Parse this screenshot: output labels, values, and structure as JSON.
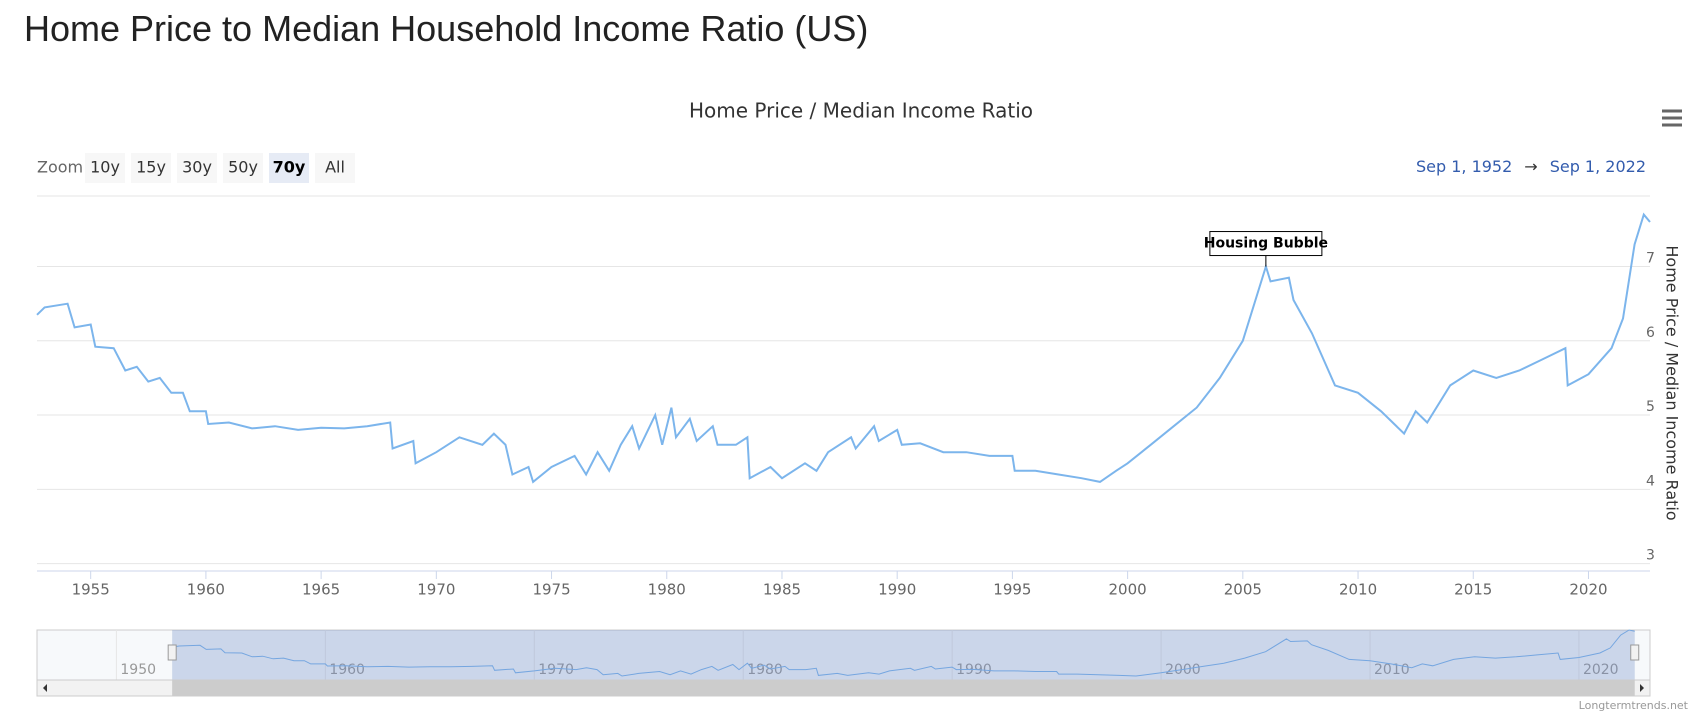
{
  "page_title": "Home Price to Median Household Income Ratio (US)",
  "chart_data": {
    "type": "line",
    "title": "Home Price / Median Income Ratio",
    "zoom_label": "Zoom",
    "zoom_buttons": [
      "10y",
      "15y",
      "30y",
      "50y",
      "70y",
      "All"
    ],
    "selected_zoom": 4,
    "range_from": "Sep 1, 1952",
    "range_separator": "→",
    "range_to": "Sep 1, 2022",
    "y_label": "Home Price / Median Income Ratio",
    "color": "#7cb5ec",
    "x": [
      1952.67,
      1953,
      1954,
      1954.3,
      1955,
      1955.2,
      1956,
      1956.5,
      1957,
      1957.5,
      1958,
      1958.5,
      1959,
      1959.3,
      1960,
      1960.1,
      1961,
      1962,
      1963,
      1964,
      1965,
      1966,
      1967,
      1968,
      1968.1,
      1969,
      1969.1,
      1970,
      1971,
      1972,
      1972.5,
      1973,
      1973.3,
      1974,
      1974.2,
      1975,
      1976,
      1976.5,
      1977,
      1977.5,
      1978,
      1978.5,
      1978.8,
      1979.5,
      1979.8,
      1980.2,
      1980.4,
      1981,
      1981.3,
      1982,
      1982.2,
      1983,
      1983.5,
      1983.6,
      1984.5,
      1985,
      1986,
      1986.5,
      1987,
      1988,
      1988.2,
      1989,
      1989.2,
      1990,
      1990.2,
      1991,
      1992,
      1993,
      1994,
      1995,
      1995.1,
      1996,
      1997,
      1998,
      1998.8,
      1999.5,
      2000,
      2001,
      2002,
      2003,
      2004,
      2005,
      2006,
      2006.2,
      2007,
      2007.2,
      2008,
      2009,
      2010,
      2011,
      2012,
      2012.5,
      2013,
      2014,
      2015,
      2016,
      2017,
      2018,
      2019,
      2019.1,
      2020,
      2021,
      2021.5,
      2022,
      2022.4,
      2022.67
    ],
    "values": [
      6.35,
      6.45,
      6.5,
      6.18,
      6.22,
      5.92,
      5.9,
      5.6,
      5.65,
      5.45,
      5.5,
      5.3,
      5.3,
      5.05,
      5.05,
      4.88,
      4.9,
      4.82,
      4.85,
      4.8,
      4.83,
      4.82,
      4.85,
      4.9,
      4.55,
      4.65,
      4.35,
      4.5,
      4.7,
      4.6,
      4.75,
      4.6,
      4.2,
      4.3,
      4.1,
      4.3,
      4.45,
      4.2,
      4.5,
      4.25,
      4.6,
      4.85,
      4.55,
      5.0,
      4.6,
      5.1,
      4.7,
      4.95,
      4.65,
      4.85,
      4.6,
      4.6,
      4.7,
      4.15,
      4.3,
      4.15,
      4.35,
      4.25,
      4.5,
      4.7,
      4.55,
      4.85,
      4.65,
      4.8,
      4.6,
      4.62,
      4.5,
      4.5,
      4.45,
      4.45,
      4.25,
      4.25,
      4.2,
      4.15,
      4.1,
      4.25,
      4.35,
      4.6,
      4.85,
      5.1,
      5.5,
      6.0,
      7.0,
      6.8,
      6.85,
      6.55,
      6.1,
      5.4,
      5.3,
      5.05,
      4.75,
      5.05,
      4.9,
      5.4,
      5.6,
      5.5,
      5.6,
      5.75,
      5.9,
      5.4,
      5.55,
      5.9,
      6.3,
      7.3,
      7.7,
      7.6
    ],
    "xlim": [
      1952.67,
      2022.67
    ],
    "xticks": [
      1955,
      1960,
      1965,
      1970,
      1975,
      1980,
      1985,
      1990,
      1995,
      2000,
      2005,
      2010,
      2015,
      2020
    ],
    "ylim": [
      2.9,
      7.95
    ],
    "yticks": [
      3,
      4,
      5,
      6,
      7
    ],
    "grid": true,
    "annotation": {
      "text": "Housing Bubble",
      "x": 2006,
      "y": 7.0
    },
    "navigator": {
      "xlim": [
        1946.2,
        2023.4
      ],
      "xticks": [
        1950,
        1960,
        1970,
        1980,
        1990,
        2000,
        2010,
        2020
      ]
    },
    "credit": "Longtermtrends.net"
  }
}
